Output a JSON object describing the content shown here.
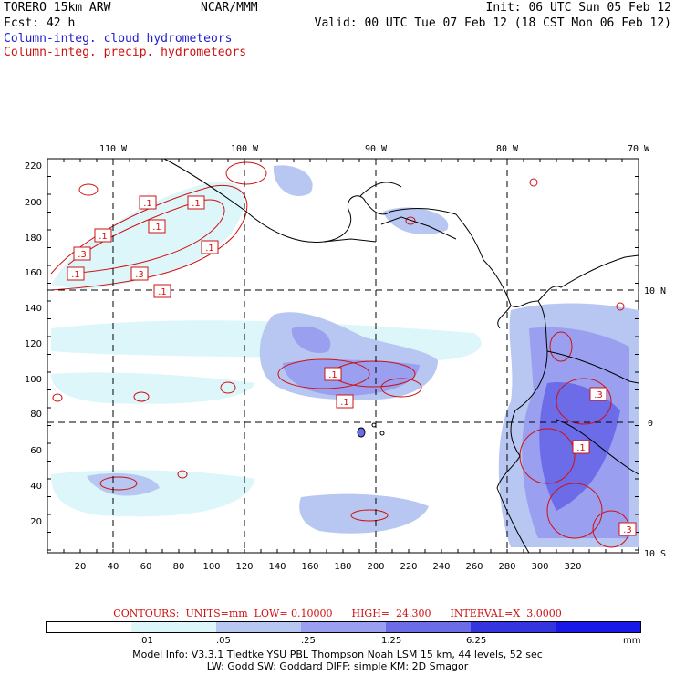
{
  "header": {
    "model": "TORERO  15km ARW",
    "org": "NCAR/MMM",
    "init": "Init: 06 UTC Sun 05 Feb 12",
    "fcst": "Fcst:   42 h",
    "valid": "Valid: 00 UTC Tue 07 Feb 12 (18 CST Mon 06 Feb 12)",
    "field_cloud": "Column-integ. cloud hydrometeors",
    "field_precip": "Column-integ. precip. hydrometeors"
  },
  "colors": {
    "cloud": "#2020d0",
    "precip": "#d01010"
  },
  "map": {
    "lon_labels": [
      "110 W",
      "100 W",
      "90 W",
      "80 W",
      "70 W"
    ],
    "lat_labels": [
      "10 N",
      "0",
      "10 S"
    ],
    "y_ticks": [
      "220",
      "200",
      "180",
      "160",
      "140",
      "120",
      "100",
      "80",
      "60",
      "40",
      "20"
    ],
    "x_ticks": [
      "20",
      "40",
      "60",
      "80",
      "100",
      "120",
      "140",
      "160",
      "180",
      "200",
      "220",
      "240",
      "260",
      "280",
      "300",
      "320"
    ],
    "contour_labels": [
      ".1",
      ".1",
      ".1",
      ".3",
      ".1",
      ".1",
      ".1",
      ".3",
      ".1",
      ".1",
      ".1",
      ".3",
      ".1",
      ".3"
    ]
  },
  "contours_info": "CONTOURS:  UNITS=mm  LOW= 0.10000      HIGH=  24.300      INTERVAL=X  3.0000",
  "colorbar": {
    "labels": [
      ".01",
      ".05",
      ".25",
      "1.25",
      "6.25"
    ],
    "unit": "mm",
    "colors": [
      "#ffffff",
      "#ddf6f9",
      "#b7c7f2",
      "#9a9ff0",
      "#6c6ce8",
      "#3434e0",
      "#1818e8"
    ]
  },
  "footer": {
    "line1": "Model Info: V3.3.1   Tiedtke YSU PBL  Thompson    Noah LSM  15 km,   44 levels,   52 sec",
    "line2": "LW: Godd SW: Goddard DIFF: simple KM: 2D Smagor"
  }
}
